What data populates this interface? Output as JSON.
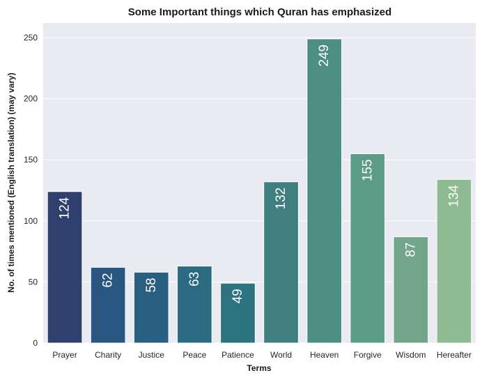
{
  "chart_data": {
    "type": "bar",
    "title": "Some Important things which Quran has emphasized",
    "xlabel": "Terms",
    "ylabel": "No. of times mentioned (English translation) (may vary)",
    "categories": [
      "Prayer",
      "Charity",
      "Justice",
      "Peace",
      "Patience",
      "World",
      "Heaven",
      "Forgive",
      "Wisdom",
      "Hereafter"
    ],
    "values": [
      124,
      62,
      58,
      63,
      49,
      132,
      249,
      155,
      87,
      134
    ],
    "colors": [
      "#2f406e",
      "#2a5682",
      "#285f80",
      "#2b6a80",
      "#2d7380",
      "#3f7f7f",
      "#4c8f82",
      "#5b9c87",
      "#72a58a",
      "#8fbb92"
    ],
    "ylim": [
      0,
      262
    ],
    "yticks": [
      0,
      50,
      100,
      150,
      200,
      250
    ],
    "grid": true,
    "background": "#eaeaf2"
  }
}
